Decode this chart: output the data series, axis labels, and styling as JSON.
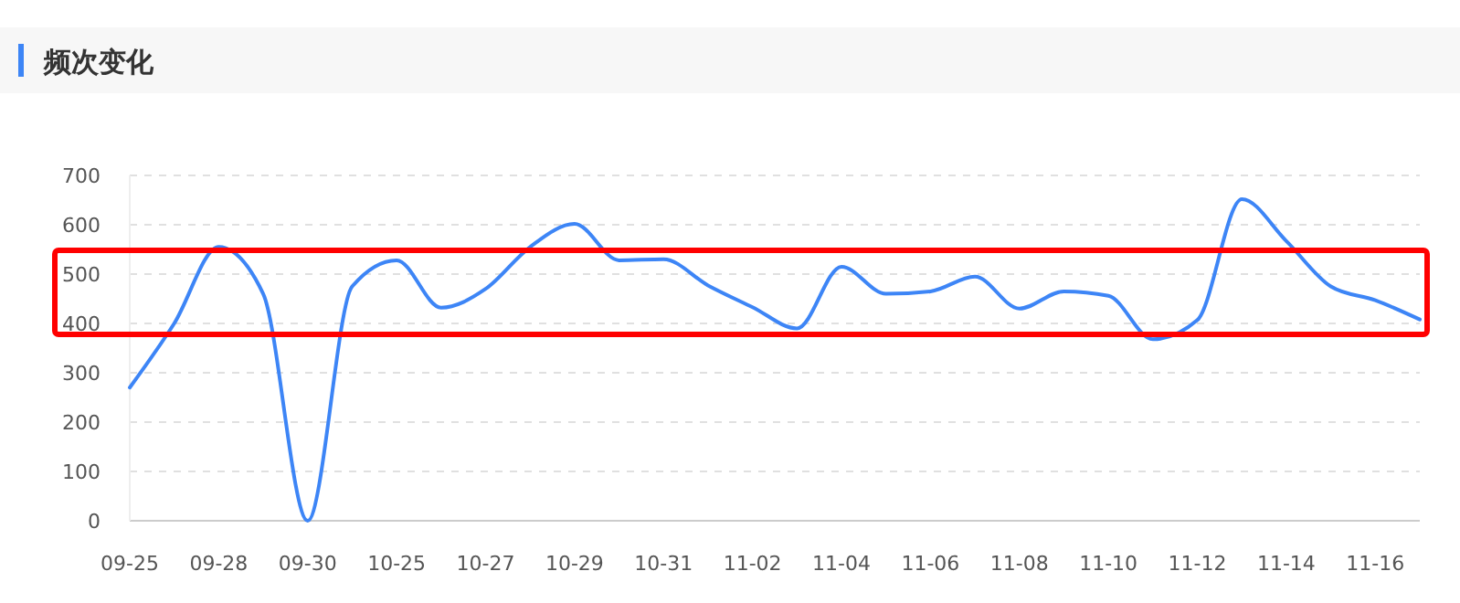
{
  "chart_data": {
    "type": "line",
    "title": "频次变化",
    "categories": [
      "09-25",
      null,
      "09-28",
      null,
      "09-30",
      null,
      "10-25",
      null,
      "10-27",
      null,
      "10-29",
      null,
      "10-31",
      null,
      "11-02",
      null,
      "11-04",
      null,
      "11-06",
      null,
      "11-08",
      null,
      "11-10",
      null,
      "11-12",
      null,
      "11-14",
      null,
      "11-16",
      null
    ],
    "series": [
      {
        "color": "#3d85f6",
        "values": [
          270,
          400,
          555,
          460,
          0,
          475,
          528,
          432,
          470,
          555,
          602,
          528,
          530,
          477,
          433,
          390,
          515,
          460,
          465,
          495,
          430,
          465,
          456,
          368,
          407,
          652,
          567,
          475,
          447,
          408
        ]
      }
    ],
    "ylim": [
      0,
      700
    ],
    "yticks": [
      0,
      100,
      200,
      300,
      400,
      500,
      600,
      700
    ],
    "grid": "y",
    "marker": "none",
    "line_style": "solid"
  }
}
